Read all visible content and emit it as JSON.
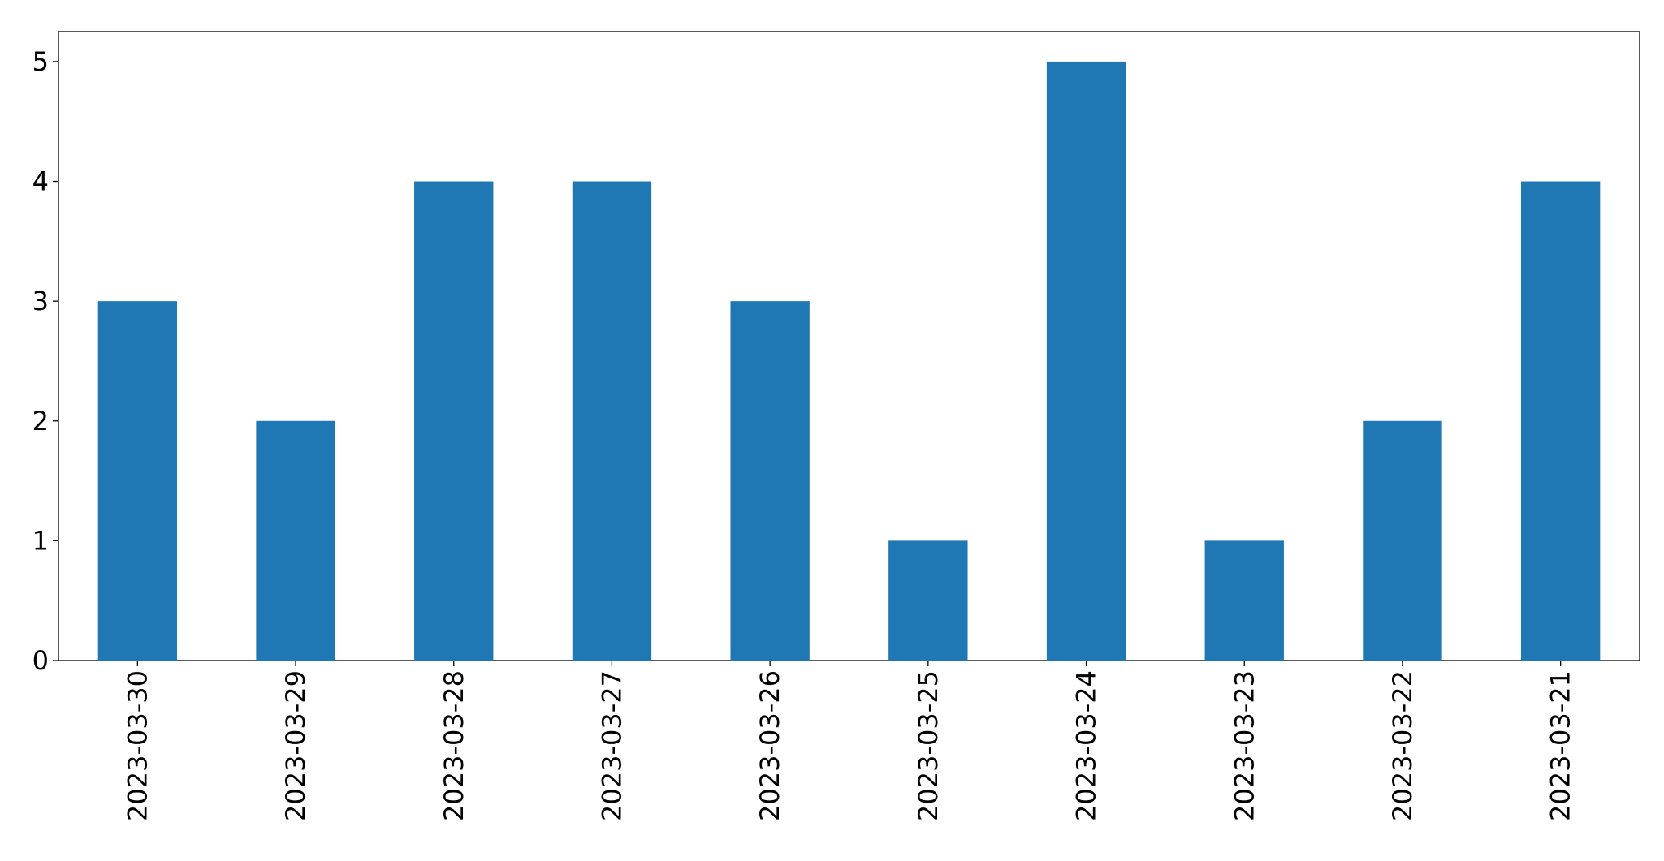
{
  "chart_data": {
    "type": "bar",
    "categories": [
      "2023-03-30",
      "2023-03-29",
      "2023-03-28",
      "2023-03-27",
      "2023-03-26",
      "2023-03-25",
      "2023-03-24",
      "2023-03-23",
      "2023-03-22",
      "2023-03-21"
    ],
    "values": [
      3,
      2,
      4,
      4,
      3,
      1,
      5,
      1,
      2,
      4
    ],
    "color": "#1f77b4",
    "ylim": [
      0,
      5.25
    ],
    "yticks": [
      0,
      1,
      2,
      3,
      4,
      5
    ],
    "grid": false
  }
}
